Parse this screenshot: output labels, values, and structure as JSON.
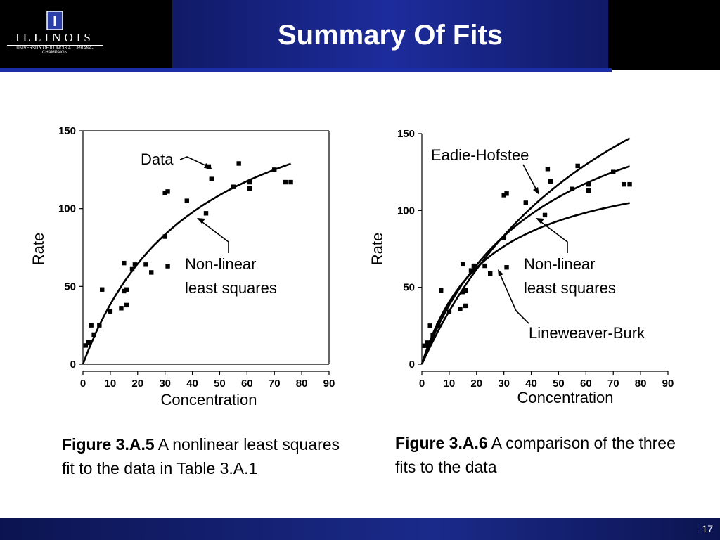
{
  "slide": {
    "title": "Summary Of Fits",
    "page_number": "17",
    "logo": {
      "word": "ILLINOIS",
      "subtitle": "UNIVERSITY OF ILLINOIS AT URBANA-CHAMPAIGN",
      "mark": "I"
    }
  },
  "captions": [
    {
      "label": "Figure 3.A.5",
      "text": "A nonlinear least squares fit to the data in Table 3.A.1"
    },
    {
      "label": "Figure 3.A.6",
      "text": "A comparison of the three fits to the data"
    }
  ],
  "colors": {
    "header_band": "#1d2c9c",
    "footer": "#1a2a8a"
  },
  "chart_data": [
    {
      "type": "scatter",
      "xlabel": "Concentration",
      "ylabel": "Rate",
      "xlim": [
        0,
        90
      ],
      "ylim": [
        0,
        150
      ],
      "xticks": [
        0,
        10,
        20,
        30,
        40,
        50,
        60,
        70,
        80,
        90
      ],
      "yticks": [
        0,
        50,
        100,
        150
      ],
      "grid": false,
      "points": [
        [
          1,
          12
        ],
        [
          2,
          14
        ],
        [
          3,
          25
        ],
        [
          4,
          19
        ],
        [
          6,
          25
        ],
        [
          7,
          48
        ],
        [
          10,
          34
        ],
        [
          14,
          36
        ],
        [
          15,
          47
        ],
        [
          15,
          65
        ],
        [
          16,
          38
        ],
        [
          16,
          48
        ],
        [
          18,
          61
        ],
        [
          19,
          64
        ],
        [
          23,
          64
        ],
        [
          25,
          59
        ],
        [
          30,
          110
        ],
        [
          30,
          82
        ],
        [
          31,
          111
        ],
        [
          31,
          63
        ],
        [
          38,
          105
        ],
        [
          45,
          97
        ],
        [
          46,
          127
        ],
        [
          47,
          119
        ],
        [
          55,
          114
        ],
        [
          57,
          129
        ],
        [
          61,
          117
        ],
        [
          61,
          113
        ],
        [
          70,
          125
        ],
        [
          74,
          117
        ],
        [
          76,
          117
        ]
      ],
      "curves": [
        {
          "name": "Non-linear least squares",
          "vmax": 200,
          "km": 42
        }
      ],
      "annotations": [
        {
          "text": "Data"
        },
        {
          "text": "Non-linear"
        },
        {
          "text": "least squares"
        }
      ]
    },
    {
      "type": "scatter",
      "xlabel": "Concentration",
      "ylabel": "Rate",
      "xlim": [
        0,
        90
      ],
      "ylim": [
        0,
        150
      ],
      "xticks": [
        0,
        10,
        20,
        30,
        40,
        50,
        60,
        70,
        80,
        90
      ],
      "yticks": [
        0,
        50,
        100,
        150
      ],
      "grid": false,
      "points": [
        [
          1,
          12
        ],
        [
          2,
          14
        ],
        [
          3,
          25
        ],
        [
          4,
          19
        ],
        [
          6,
          25
        ],
        [
          7,
          48
        ],
        [
          10,
          34
        ],
        [
          14,
          36
        ],
        [
          15,
          47
        ],
        [
          15,
          65
        ],
        [
          16,
          38
        ],
        [
          16,
          48
        ],
        [
          18,
          61
        ],
        [
          19,
          64
        ],
        [
          23,
          64
        ],
        [
          25,
          59
        ],
        [
          30,
          110
        ],
        [
          30,
          82
        ],
        [
          31,
          111
        ],
        [
          31,
          63
        ],
        [
          38,
          105
        ],
        [
          45,
          97
        ],
        [
          46,
          127
        ],
        [
          47,
          119
        ],
        [
          55,
          114
        ],
        [
          57,
          129
        ],
        [
          61,
          117
        ],
        [
          61,
          113
        ],
        [
          70,
          125
        ],
        [
          74,
          117
        ],
        [
          76,
          117
        ]
      ],
      "curves": [
        {
          "name": "Eadie-Hofstee",
          "vmax": 290,
          "km": 74
        },
        {
          "name": "Non-linear least squares",
          "vmax": 200,
          "km": 42
        },
        {
          "name": "Lineweaver-Burk",
          "vmax": 138,
          "km": 24
        }
      ],
      "annotations": [
        {
          "text": "Eadie-Hofstee"
        },
        {
          "text": "Non-linear"
        },
        {
          "text": "least squares"
        },
        {
          "text": "Lineweaver-Burk"
        }
      ]
    }
  ]
}
